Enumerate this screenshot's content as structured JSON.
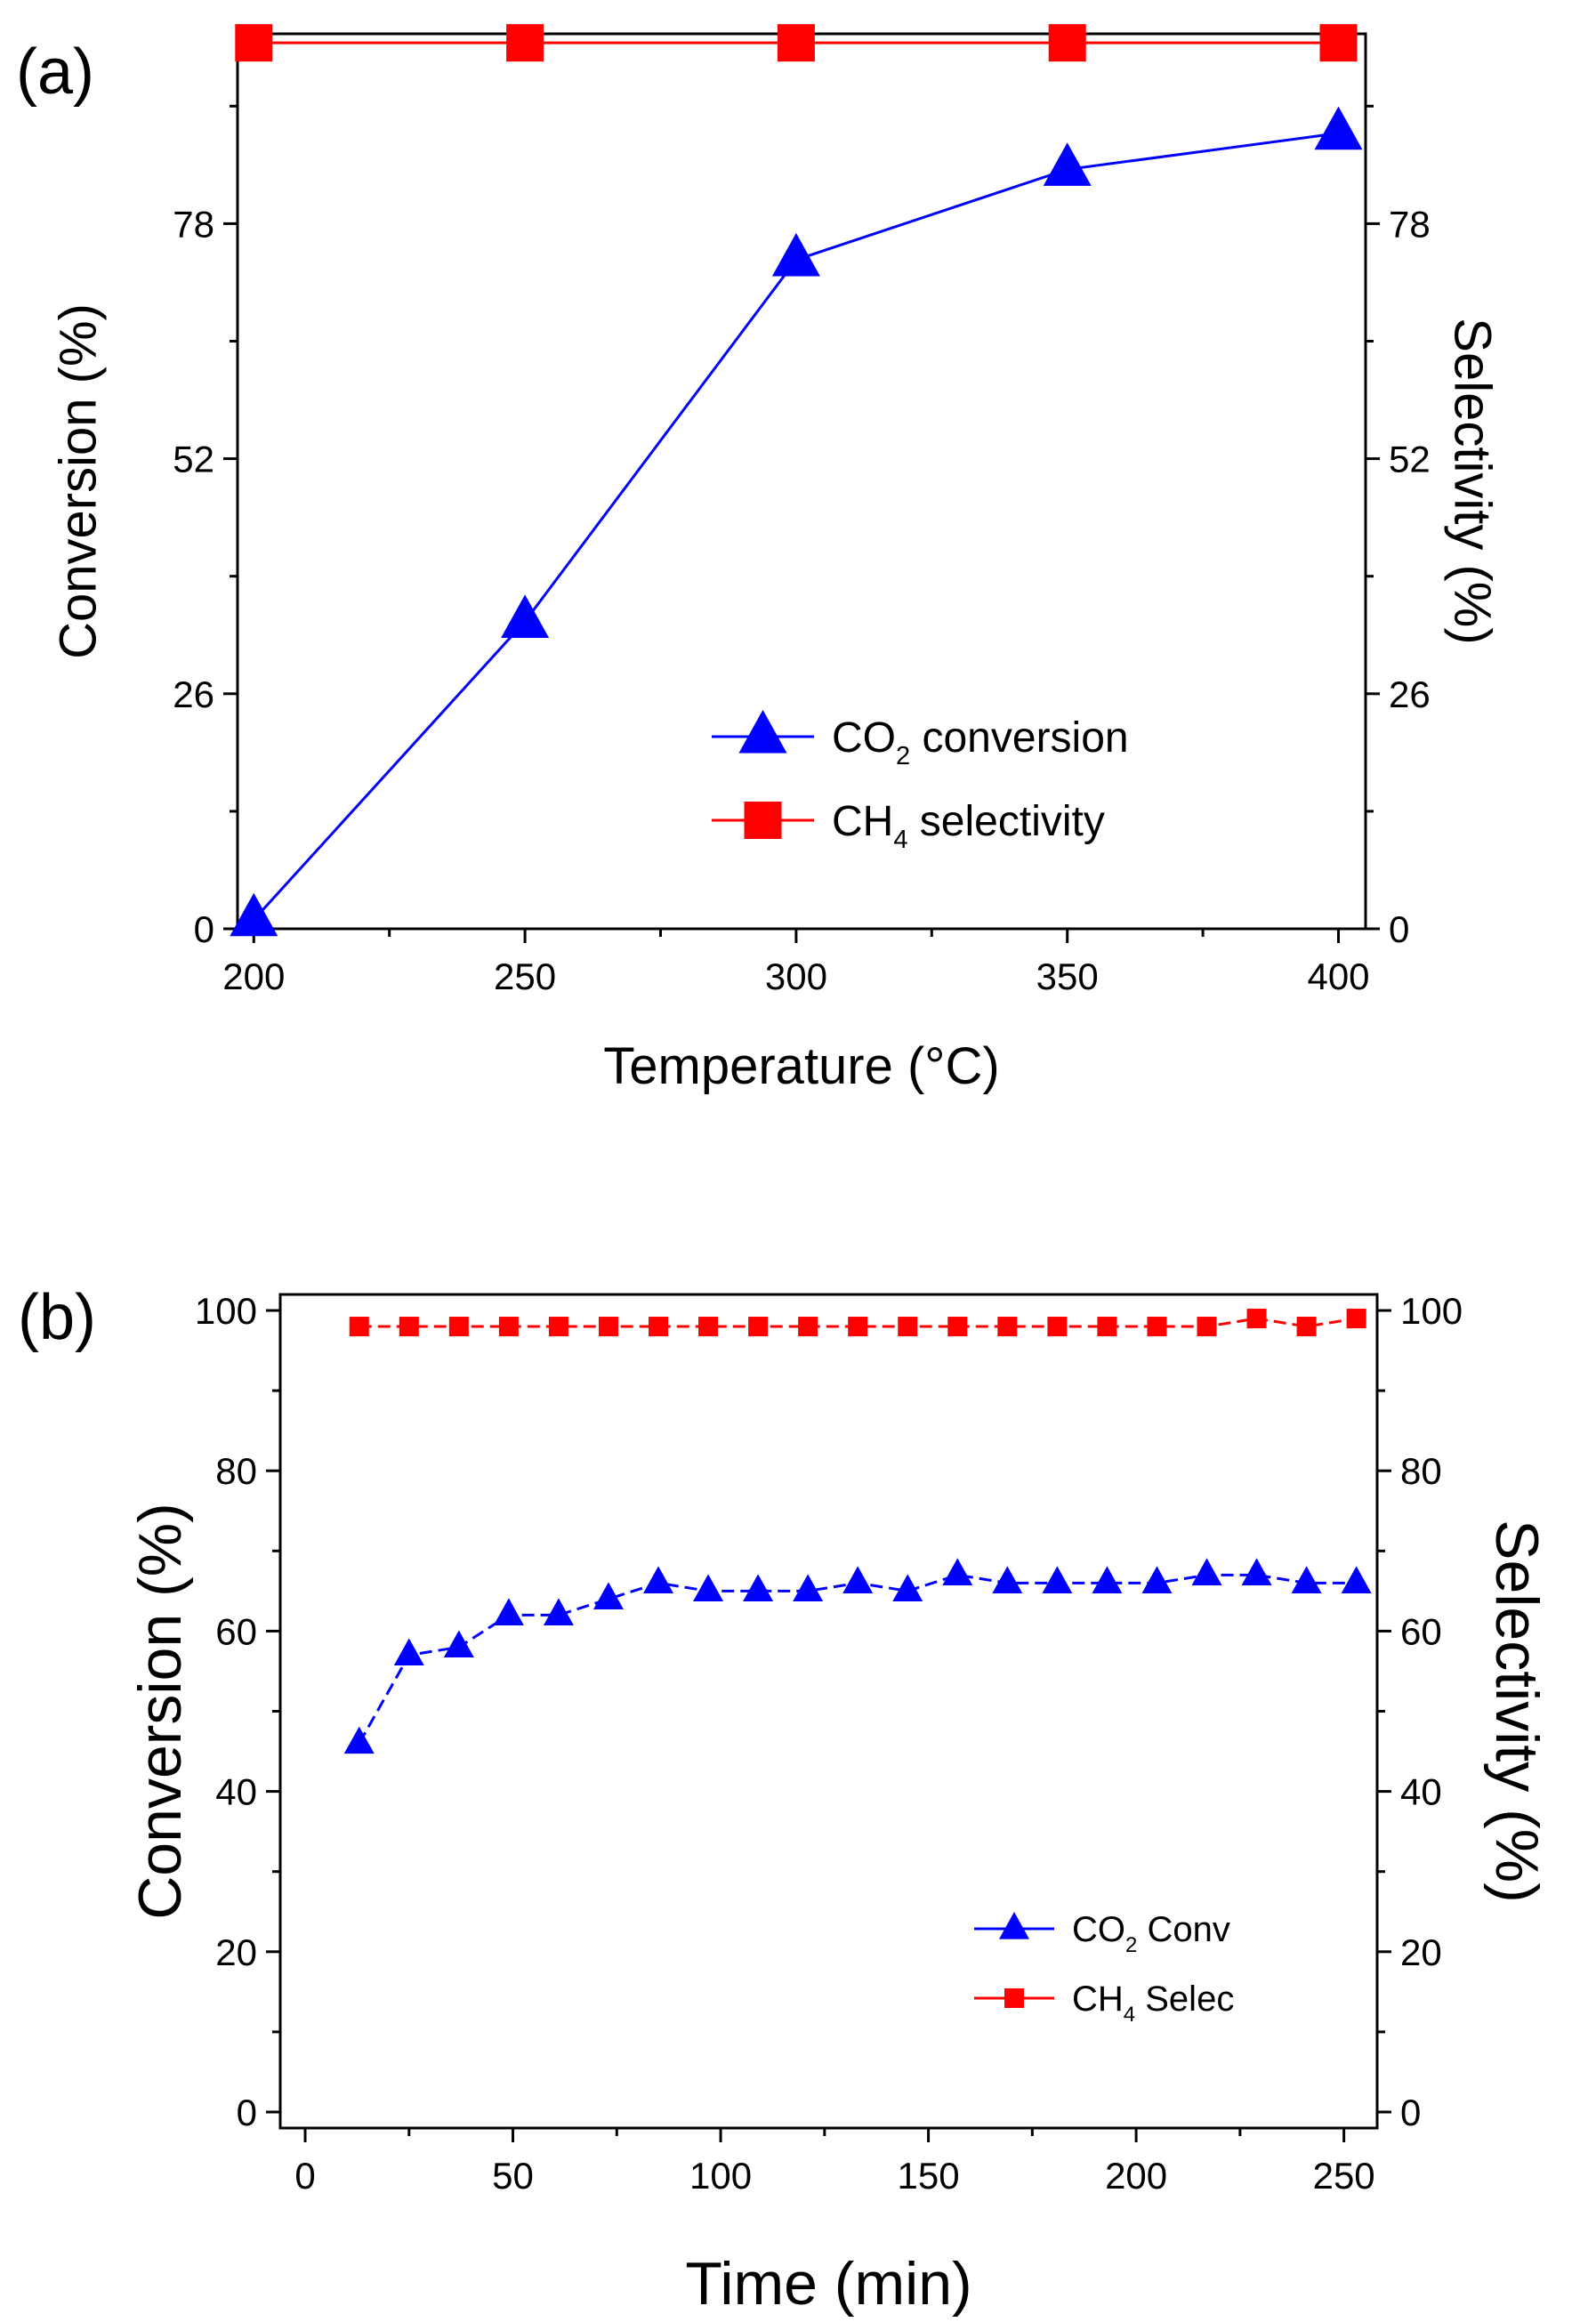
{
  "chart_data": [
    {
      "type": "line",
      "panel_label": "(a)",
      "xlabel": "Temperature (°C)",
      "ylabel_left": "Conversion (%)",
      "ylabel_right": "Selectivity (%)",
      "xlim": [
        197,
        405
      ],
      "ylim": [
        0,
        99
      ],
      "xticks": [
        200,
        250,
        300,
        350,
        400
      ],
      "yticks": [
        0,
        26,
        52,
        78
      ],
      "x": [
        200,
        250,
        300,
        350,
        400
      ],
      "series": [
        {
          "name": "CO2 conversion",
          "legend_main": "CO",
          "legend_sub": "2",
          "legend_rest": " conversion",
          "marker": "triangle",
          "color": "#0000ff",
          "values": [
            1,
            34,
            74,
            84,
            88
          ]
        },
        {
          "name": "CH4 selectivity",
          "legend_main": "CH",
          "legend_sub": "4",
          "legend_rest": " selectivity",
          "marker": "square",
          "color": "#ff0000",
          "values": [
            98,
            98,
            98,
            98,
            98
          ]
        }
      ],
      "legend_position": "bottom-right"
    },
    {
      "type": "line",
      "panel_label": "(b)",
      "xlabel": "Time (min)",
      "ylabel_left": "Conversion (%)",
      "ylabel_right": "Selectivity (%)",
      "xlim": [
        -6,
        258
      ],
      "ylim": [
        -2,
        102
      ],
      "xticks": [
        0,
        50,
        100,
        150,
        200,
        250
      ],
      "yticks": [
        0,
        20,
        40,
        60,
        80,
        100
      ],
      "x": [
        13,
        25,
        37,
        49,
        61,
        73,
        85,
        97,
        109,
        121,
        133,
        145,
        157,
        169,
        181,
        193,
        205,
        217,
        229,
        241,
        253
      ],
      "series": [
        {
          "name": "CO2 Conv",
          "legend_main": "CO",
          "legend_sub": "2",
          "legend_rest": " Conv",
          "marker": "triangle",
          "color": "#0000ff",
          "values": [
            46,
            57,
            58,
            62,
            62,
            64,
            66,
            65,
            65,
            65,
            66,
            65,
            67,
            66,
            66,
            66,
            66,
            67,
            67,
            66,
            66
          ]
        },
        {
          "name": "CH4 Selec",
          "legend_main": "CH",
          "legend_sub": "4",
          "legend_rest": " Selec",
          "marker": "square",
          "color": "#ff0000",
          "values": [
            98,
            98,
            98,
            98,
            98,
            98,
            98,
            98,
            98,
            98,
            98,
            98,
            98,
            98,
            98,
            98,
            98,
            98,
            99,
            98,
            99
          ]
        }
      ],
      "legend_position": "bottom-right"
    }
  ]
}
